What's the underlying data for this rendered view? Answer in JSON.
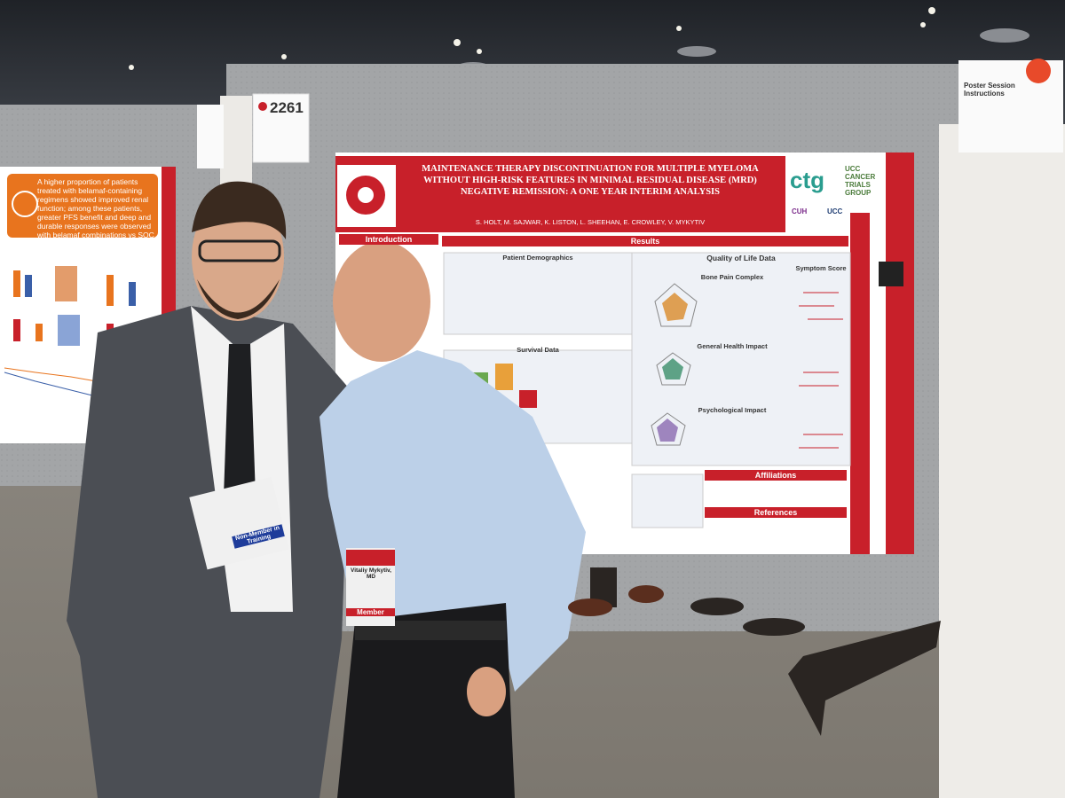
{
  "board_number": "2261",
  "left_poster": {
    "headline": "A higher proportion of patients treated with belamaf-containing regimens showed improved renal function; among these patients, greater PFS benefit and deep and durable responses were observed with belamaf combinations vs SOC therapies"
  },
  "instructions": {
    "title": "Poster Session Instructions"
  },
  "poster": {
    "title": "MAINTENANCE THERAPY DISCONTINUATION FOR MULTIPLE MYELOMA WITHOUT HIGH-RISK FEATURES IN MINIMAL RESIDUAL DISEASE (MRD) NEGATIVE REMISSION: A ONE YEAR INTERIM ANALYSIS",
    "authors": "S. HOLT, M. SAJWAR, K. LISTON, L. SHEEHAN, E. CROWLEY, V. MYKYTIV",
    "logos": [
      "ctg",
      "UCC CANCER TRIALS GROUP",
      "CUH",
      "UCC"
    ],
    "sections": {
      "introduction": "Introduction",
      "results": "Results",
      "patient_demographics": "Patient Demographics",
      "survival_data": "Survival Data",
      "quality_of_life": "Quality of Life Data",
      "bone_pain": "Bone Pain Complex",
      "general_health": "General Health Impact",
      "psychological": "Psychological Impact",
      "symptom_score": "Symptom Score",
      "affiliations": "Affiliations",
      "references": "References"
    }
  },
  "badges": [
    {
      "ribbon": "Non-Member in Training"
    },
    {
      "name": "Vitaliy Mykytiv, MD",
      "ribbon": "Member"
    }
  ]
}
